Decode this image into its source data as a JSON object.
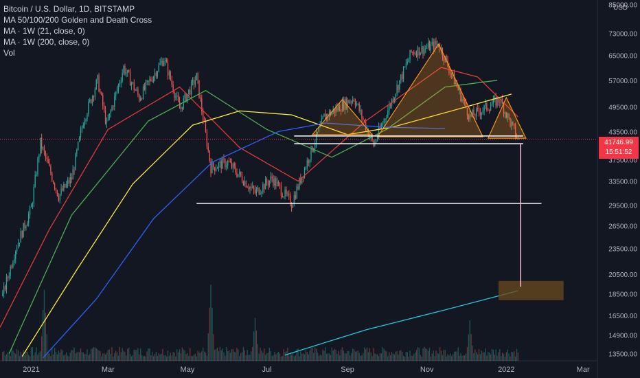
{
  "chart_title": "Bitcoin / U.S. Dollar, 1D, BITSTAMP",
  "indicators": [
    "MA 50/100/200 Golden and Death Cross",
    "MA · 1W (21, close, 0)",
    "MA · 1W (200, close, 0)",
    "Vol"
  ],
  "currency": "USD",
  "last_price": "41746.99",
  "countdown": "15:51:52",
  "colors": {
    "background": "#131722",
    "up": "#26a69a",
    "down": "#ef5350",
    "ma_red": "#e53935",
    "ma_green": "#4caf50",
    "ma_yellow": "#ffeb3b",
    "ma_blue": "#2962ff",
    "ma_cyan": "#26c6da",
    "pattern_orange": "#f7931a",
    "lines_white": "#ffffff",
    "target_box": "#6b4a1e"
  },
  "chart_data": {
    "type": "candlestick",
    "title": "Bitcoin / U.S. Dollar, 1D, BITSTAMP",
    "x_ticks": [
      "2021",
      "Mar",
      "May",
      "Jul",
      "Sep",
      "Nov",
      "2022",
      "Mar"
    ],
    "y_scale": "log",
    "y_ticks": [
      85000,
      73000,
      65000,
      57000,
      49500,
      43500,
      37500,
      33500,
      29500,
      26500,
      23500,
      20500,
      18500,
      16500,
      14900,
      13500
    ],
    "y_tick_labels": [
      "85000.00",
      "73000.00",
      "65000.00",
      "57000.00",
      "49500.00",
      "43500.00",
      "37500.00",
      "33500.00",
      "29500.00",
      "26500.00",
      "23500.00",
      "20500.00",
      "18500.00",
      "16500.00",
      "14900.00",
      "13500.00"
    ],
    "ylim": [
      13000,
      87000
    ],
    "xlim": [
      "2020-12-08",
      "2022-03-12"
    ],
    "price_path": [
      [
        "2020-12-10",
        18300
      ],
      [
        "2020-12-20",
        23500
      ],
      [
        "2021-01-01",
        29000
      ],
      [
        "2021-01-08",
        41000
      ],
      [
        "2021-01-22",
        31000
      ],
      [
        "2021-02-01",
        34000
      ],
      [
        "2021-02-10",
        46000
      ],
      [
        "2021-02-21",
        57000
      ],
      [
        "2021-02-28",
        45000
      ],
      [
        "2021-03-13",
        61000
      ],
      [
        "2021-03-25",
        52000
      ],
      [
        "2021-04-13",
        64000
      ],
      [
        "2021-04-25",
        49000
      ],
      [
        "2021-05-08",
        58000
      ],
      [
        "2021-05-19",
        36000
      ],
      [
        "2021-06-01",
        37000
      ],
      [
        "2021-06-22",
        31500
      ],
      [
        "2021-07-05",
        34000
      ],
      [
        "2021-07-20",
        29800
      ],
      [
        "2021-08-14",
        47000
      ],
      [
        "2021-09-06",
        52000
      ],
      [
        "2021-09-21",
        40500
      ],
      [
        "2021-10-20",
        66000
      ],
      [
        "2021-11-10",
        69000
      ],
      [
        "2021-12-04",
        47000
      ],
      [
        "2021-12-27",
        51500
      ],
      [
        "2022-01-10",
        41700
      ]
    ],
    "moving_averages": [
      {
        "color": "#e53935",
        "points": [
          [
            "2020-12-08",
            15500
          ],
          [
            "2021-01-15",
            26000
          ],
          [
            "2021-03-01",
            44000
          ],
          [
            "2021-04-25",
            55000
          ],
          [
            "2021-06-10",
            40000
          ],
          [
            "2021-07-25",
            33500
          ],
          [
            "2021-09-15",
            46000
          ],
          [
            "2021-11-12",
            61000
          ],
          [
            "2021-12-10",
            58000
          ],
          [
            "2022-01-10",
            47000
          ]
        ]
      },
      {
        "color": "#4caf50",
        "points": [
          [
            "2020-12-15",
            13500
          ],
          [
            "2021-02-01",
            28000
          ],
          [
            "2021-04-01",
            46000
          ],
          [
            "2021-05-15",
            54000
          ],
          [
            "2021-07-01",
            44000
          ],
          [
            "2021-08-20",
            38000
          ],
          [
            "2021-10-01",
            44000
          ],
          [
            "2021-11-15",
            55000
          ],
          [
            "2021-12-25",
            57000
          ]
        ]
      },
      {
        "color": "#ffeb3b",
        "points": [
          [
            "2020-12-25",
            13300
          ],
          [
            "2021-02-05",
            21000
          ],
          [
            "2021-03-20",
            33000
          ],
          [
            "2021-05-05",
            45000
          ],
          [
            "2021-06-10",
            48500
          ],
          [
            "2021-07-20",
            47500
          ],
          [
            "2021-09-01",
            42800
          ],
          [
            "2021-10-05",
            44500
          ],
          [
            "2021-11-20",
            48500
          ],
          [
            "2022-01-05",
            53000
          ]
        ]
      },
      {
        "color": "#2962ff",
        "points": [
          [
            "2021-01-10",
            13200
          ],
          [
            "2021-02-20",
            18000
          ],
          [
            "2021-04-05",
            27500
          ],
          [
            "2021-05-20",
            37000
          ],
          [
            "2021-07-10",
            43500
          ],
          [
            "2021-08-15",
            45500
          ],
          [
            "2021-10-01",
            44500
          ],
          [
            "2021-11-15",
            44200
          ]
        ]
      },
      {
        "color": "#26c6da",
        "points": [
          [
            "2021-07-15",
            13400
          ],
          [
            "2021-09-15",
            15300
          ],
          [
            "2021-11-15",
            17000
          ],
          [
            "2022-01-10",
            18800
          ]
        ]
      }
    ],
    "pattern_triangles": [
      [
        [
          "2021-08-05",
          42800
        ],
        [
          "2021-08-28",
          51500
        ],
        [
          "2021-09-20",
          42800
        ]
      ],
      [
        [
          "2021-09-24",
          42300
        ],
        [
          "2021-11-10",
          69000
        ],
        [
          "2021-12-14",
          42300
        ]
      ],
      [
        [
          "2021-12-18",
          42000
        ],
        [
          "2022-01-01",
          52000
        ],
        [
          "2022-01-16",
          42000
        ]
      ]
    ],
    "horizontal_lines": [
      {
        "from": "2021-07-22",
        "to": "2022-01-14",
        "value": 42500
      },
      {
        "from": "2021-07-22",
        "to": "2022-01-14",
        "value": 40800
      },
      {
        "from": "2021-05-08",
        "to": "2022-01-28",
        "value": 29800
      }
    ],
    "target_arrow": {
      "x": "2022-01-12",
      "from_value": 40800,
      "to_value": 19200
    },
    "target_box": {
      "from": "2021-12-26",
      "to": "2022-02-14",
      "top": 19800,
      "bottom": 17900
    },
    "last_price_line": 41746.99,
    "volume": {
      "note": "daily volume bars",
      "relative_peaks": [
        [
          "2021-01-11",
          0.85
        ],
        [
          "2021-05-19",
          0.9
        ],
        [
          "2021-06-22",
          0.5
        ],
        [
          "2021-12-04",
          0.45
        ]
      ]
    }
  }
}
